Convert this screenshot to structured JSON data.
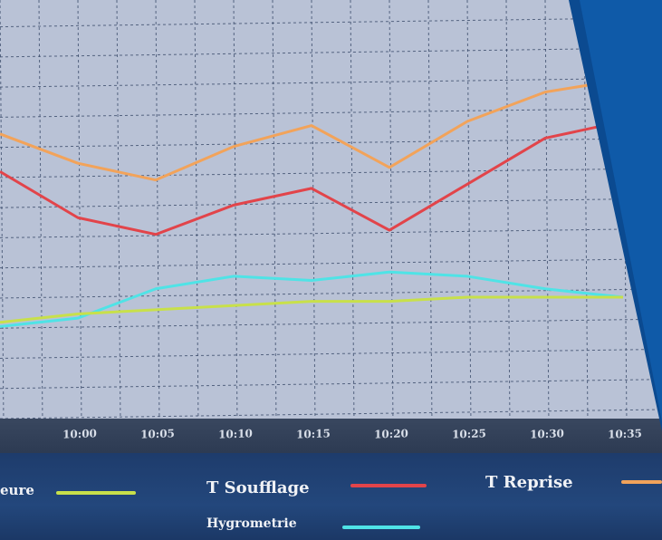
{
  "chart_data": {
    "type": "line",
    "x": [
      "10:00",
      "10:05",
      "10:10",
      "10:15",
      "10:20",
      "10:25",
      "10:30",
      "10:35"
    ],
    "xlim": [
      "09:55",
      "10:35"
    ],
    "ylim": [
      0,
      100
    ],
    "grid": true,
    "legend_placement": "bottom",
    "series": [
      {
        "name": "T Reprise",
        "color": "#f2a35a",
        "x": [
          "09:55",
          "10:00",
          "10:05",
          "10:10",
          "10:15",
          "10:20",
          "10:25",
          "10:30",
          "10:35"
        ],
        "values": [
          68,
          61,
          57,
          65,
          70,
          60,
          71,
          78,
          81
        ]
      },
      {
        "name": "T Soufflage",
        "color": "#e2444a",
        "x": [
          "09:55",
          "10:00",
          "10:05",
          "10:10",
          "10:15",
          "10:20",
          "10:25",
          "10:30",
          "10:35"
        ],
        "values": [
          59,
          48,
          44,
          51,
          55,
          45,
          56,
          67,
          71
        ]
      },
      {
        "name": "Hygrometrie",
        "color": "#4fe3e6",
        "x": [
          "09:55",
          "10:00",
          "10:05",
          "10:10",
          "10:15",
          "10:20",
          "10:25",
          "10:30",
          "10:35"
        ],
        "values": [
          22,
          24,
          31,
          34,
          33,
          35,
          34,
          31,
          29
        ]
      },
      {
        "name": "eure",
        "color": "#c8e04a",
        "x": [
          "09:55",
          "10:00",
          "10:05",
          "10:10",
          "10:15",
          "10:20",
          "10:25",
          "10:30",
          "10:35"
        ],
        "values": [
          23,
          25,
          26,
          27,
          28,
          28,
          29,
          29,
          29
        ]
      }
    ]
  },
  "legend": {
    "items": [
      {
        "label": "eure",
        "color": "#c8e04a"
      },
      {
        "label": "T Soufflage",
        "color": "#e2444a"
      },
      {
        "label": "T Reprise",
        "color": "#f2a35a"
      },
      {
        "label": "Hygrometrie",
        "color": "#4fe3e6"
      }
    ]
  },
  "colors": {
    "plot_background": "#b9c2d6",
    "grid": "#3b4c6b",
    "blue_panel": "#0f5aa8"
  }
}
